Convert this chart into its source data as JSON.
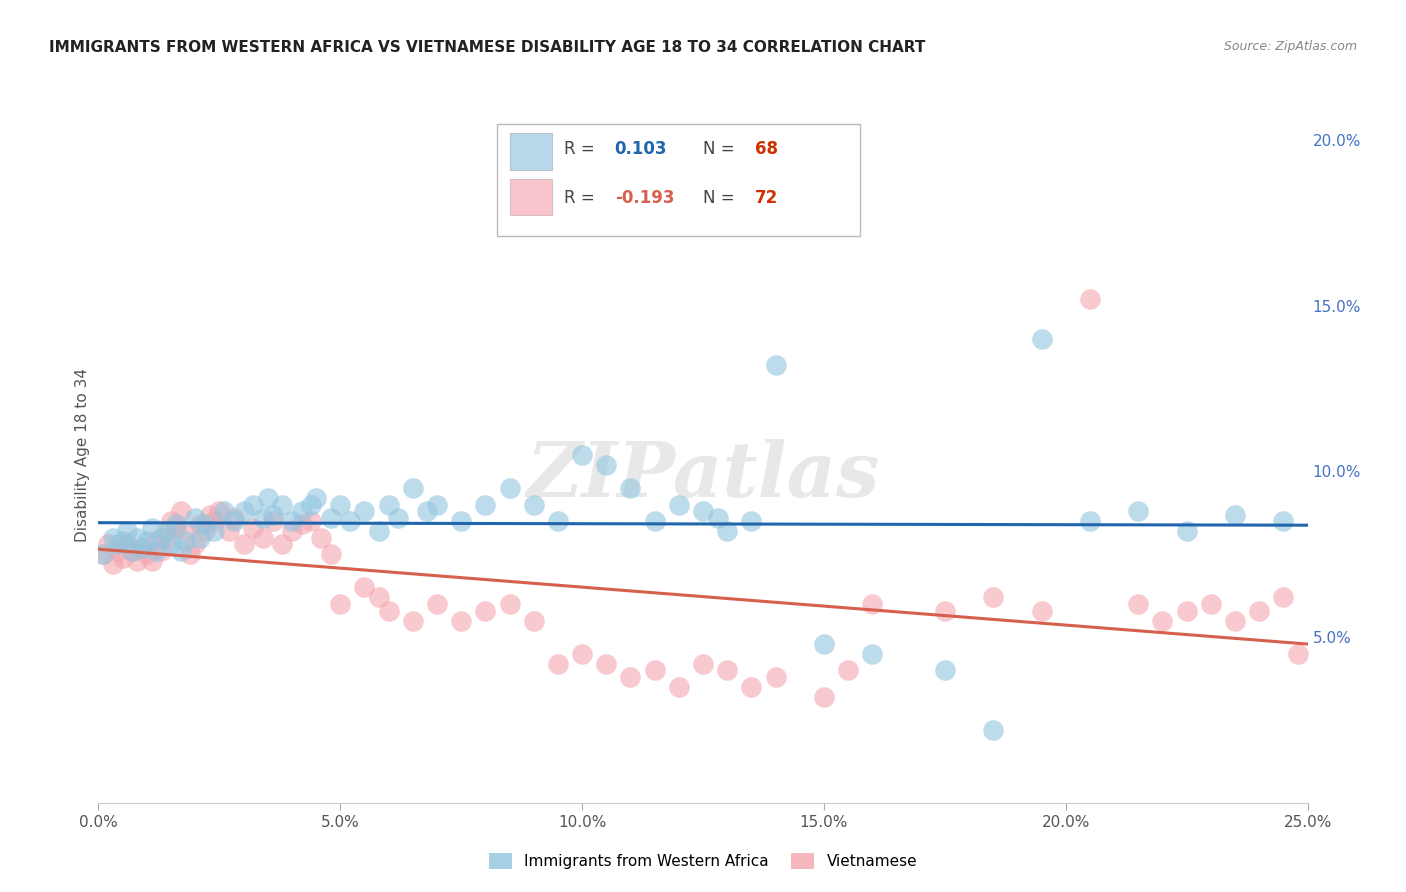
{
  "title": "IMMIGRANTS FROM WESTERN AFRICA VS VIETNAMESE DISABILITY AGE 18 TO 34 CORRELATION CHART",
  "source": "Source: ZipAtlas.com",
  "ylabel": "Disability Age 18 to 34",
  "xlim": [
    0.0,
    0.25
  ],
  "ylim": [
    0.0,
    0.21
  ],
  "xticks": [
    0.0,
    0.05,
    0.1,
    0.15,
    0.2,
    0.25
  ],
  "yticks_right": [
    0.05,
    0.1,
    0.15,
    0.2
  ],
  "r_blue": 0.103,
  "n_blue": 68,
  "r_pink": -0.193,
  "n_pink": 72,
  "blue_color": "#92c5de",
  "pink_color": "#f4a6b0",
  "blue_line_color": "#2166ac",
  "pink_line_color": "#d6604d",
  "watermark": "ZIPatlas",
  "blue_scatter_x": [
    0.001,
    0.003,
    0.004,
    0.005,
    0.006,
    0.007,
    0.008,
    0.009,
    0.01,
    0.011,
    0.012,
    0.013,
    0.014,
    0.015,
    0.016,
    0.017,
    0.018,
    0.02,
    0.021,
    0.022,
    0.024,
    0.026,
    0.028,
    0.03,
    0.032,
    0.034,
    0.035,
    0.036,
    0.038,
    0.04,
    0.042,
    0.044,
    0.045,
    0.048,
    0.05,
    0.052,
    0.055,
    0.058,
    0.06,
    0.062,
    0.065,
    0.068,
    0.07,
    0.075,
    0.08,
    0.085,
    0.09,
    0.095,
    0.1,
    0.105,
    0.11,
    0.115,
    0.12,
    0.125,
    0.128,
    0.13,
    0.135,
    0.14,
    0.15,
    0.16,
    0.175,
    0.185,
    0.195,
    0.205,
    0.215,
    0.225,
    0.235,
    0.245
  ],
  "blue_scatter_y": [
    0.075,
    0.08,
    0.078,
    0.079,
    0.082,
    0.076,
    0.08,
    0.077,
    0.079,
    0.083,
    0.076,
    0.08,
    0.082,
    0.078,
    0.084,
    0.076,
    0.079,
    0.086,
    0.08,
    0.084,
    0.082,
    0.088,
    0.085,
    0.088,
    0.09,
    0.086,
    0.092,
    0.087,
    0.09,
    0.085,
    0.088,
    0.09,
    0.092,
    0.086,
    0.09,
    0.085,
    0.088,
    0.082,
    0.09,
    0.086,
    0.095,
    0.088,
    0.09,
    0.085,
    0.09,
    0.095,
    0.09,
    0.085,
    0.105,
    0.102,
    0.095,
    0.085,
    0.09,
    0.088,
    0.086,
    0.082,
    0.085,
    0.132,
    0.048,
    0.045,
    0.04,
    0.022,
    0.14,
    0.085,
    0.088,
    0.082,
    0.087,
    0.085
  ],
  "pink_scatter_x": [
    0.001,
    0.002,
    0.003,
    0.004,
    0.005,
    0.006,
    0.007,
    0.008,
    0.009,
    0.01,
    0.011,
    0.012,
    0.013,
    0.014,
    0.015,
    0.016,
    0.017,
    0.018,
    0.019,
    0.02,
    0.021,
    0.022,
    0.023,
    0.024,
    0.025,
    0.027,
    0.028,
    0.03,
    0.032,
    0.034,
    0.036,
    0.038,
    0.04,
    0.042,
    0.044,
    0.046,
    0.048,
    0.05,
    0.055,
    0.058,
    0.06,
    0.065,
    0.07,
    0.075,
    0.08,
    0.085,
    0.09,
    0.095,
    0.1,
    0.105,
    0.11,
    0.115,
    0.12,
    0.125,
    0.13,
    0.135,
    0.14,
    0.15,
    0.155,
    0.16,
    0.175,
    0.185,
    0.195,
    0.205,
    0.215,
    0.22,
    0.225,
    0.23,
    0.235,
    0.24,
    0.245,
    0.248
  ],
  "pink_scatter_y": [
    0.075,
    0.078,
    0.072,
    0.076,
    0.074,
    0.078,
    0.076,
    0.073,
    0.077,
    0.075,
    0.073,
    0.079,
    0.076,
    0.08,
    0.085,
    0.083,
    0.088,
    0.082,
    0.075,
    0.078,
    0.084,
    0.082,
    0.087,
    0.085,
    0.088,
    0.082,
    0.086,
    0.078,
    0.083,
    0.08,
    0.085,
    0.078,
    0.082,
    0.084,
    0.085,
    0.08,
    0.075,
    0.06,
    0.065,
    0.062,
    0.058,
    0.055,
    0.06,
    0.055,
    0.058,
    0.06,
    0.055,
    0.042,
    0.045,
    0.042,
    0.038,
    0.04,
    0.035,
    0.042,
    0.04,
    0.035,
    0.038,
    0.032,
    0.04,
    0.06,
    0.058,
    0.062,
    0.058,
    0.152,
    0.06,
    0.055,
    0.058,
    0.06,
    0.055,
    0.058,
    0.062,
    0.045
  ]
}
